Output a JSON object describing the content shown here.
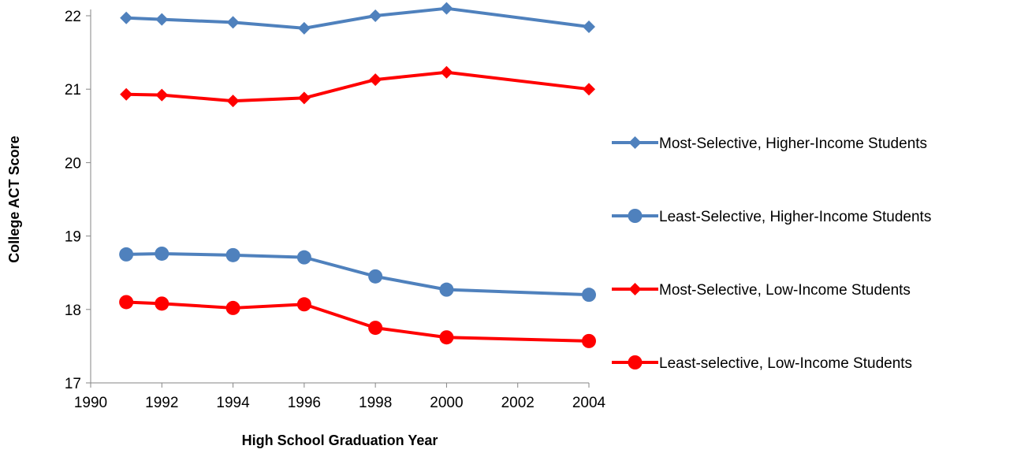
{
  "chart_data": {
    "type": "line",
    "title": "",
    "xlabel": "High School Graduation Year",
    "ylabel": "College ACT Score",
    "xlim": [
      1990,
      2004
    ],
    "ylim": [
      17,
      22
    ],
    "xticks": [
      1990,
      1992,
      1994,
      1996,
      1998,
      2000,
      2002,
      2004
    ],
    "yticks": [
      17,
      18,
      19,
      20,
      21,
      22
    ],
    "grid": false,
    "legend_position": "right",
    "series": [
      {
        "name": "Most-Selective, Higher-Income Students",
        "color": "#4f81bd",
        "marker": "diamond",
        "x": [
          1991,
          1992,
          1994,
          1996,
          1998,
          2000,
          2004
        ],
        "y": [
          21.97,
          21.95,
          21.91,
          21.83,
          22.0,
          22.1,
          21.85
        ]
      },
      {
        "name": "Least-Selective, Higher-Income Students",
        "color": "#4f81bd",
        "marker": "circle",
        "x": [
          1991,
          1992,
          1994,
          1996,
          1998,
          2000,
          2004
        ],
        "y": [
          18.75,
          18.76,
          18.74,
          18.71,
          18.45,
          18.27,
          18.2
        ]
      },
      {
        "name": "Most-Selective, Low-Income Students",
        "color": "#ff0000",
        "marker": "diamond",
        "x": [
          1991,
          1992,
          1994,
          1996,
          1998,
          2000,
          2004
        ],
        "y": [
          20.93,
          20.92,
          20.84,
          20.88,
          21.13,
          21.23,
          21.0
        ]
      },
      {
        "name": "Least-selective, Low-Income Students",
        "color": "#ff0000",
        "marker": "circle",
        "x": [
          1991,
          1992,
          1994,
          1996,
          1998,
          2000,
          2004
        ],
        "y": [
          18.1,
          18.08,
          18.02,
          18.07,
          17.75,
          17.62,
          17.57
        ]
      }
    ]
  }
}
